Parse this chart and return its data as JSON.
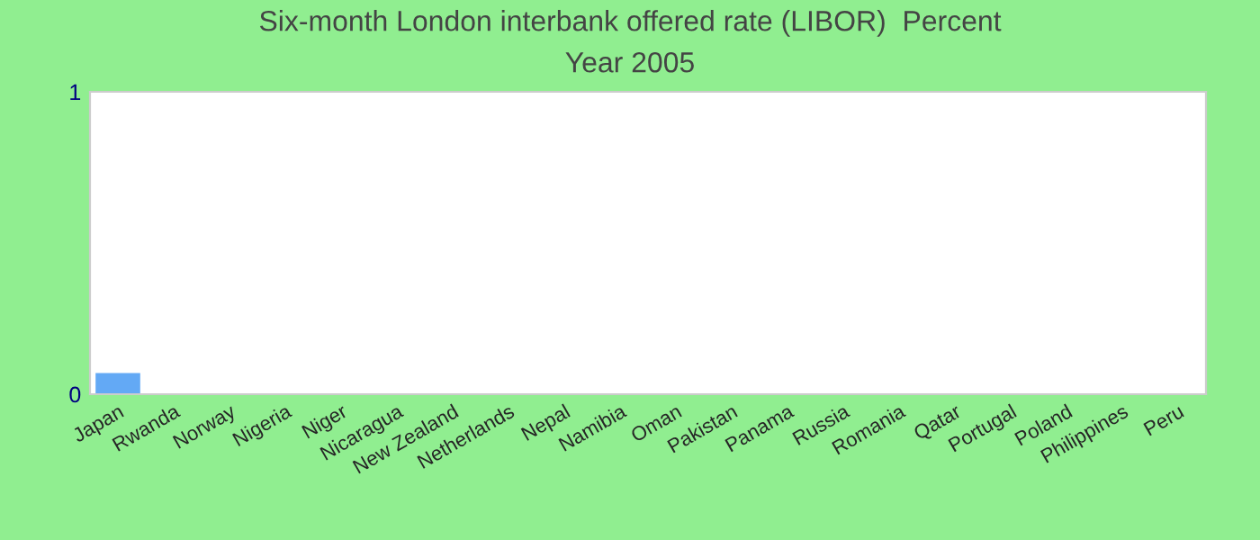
{
  "chart_data": {
    "type": "bar",
    "title": "Six-month London interbank offered rate (LIBOR)  Percent",
    "subtitle": "Year 2005",
    "categories": [
      "Japan",
      "Rwanda",
      "Norway",
      "Nigeria",
      "Niger",
      "Nicaragua",
      "New Zealand",
      "Netherlands",
      "Nepal",
      "Namibia",
      "Oman",
      "Pakistan",
      "Panama",
      "Russia",
      "Romania",
      "Qatar",
      "Portugal",
      "Poland",
      "Philippines",
      "Peru"
    ],
    "values": [
      0.07,
      0,
      0,
      0,
      0,
      0,
      0,
      0,
      0,
      0,
      0,
      0,
      0,
      0,
      0,
      0,
      0,
      0,
      0,
      0
    ],
    "color": "#63a9f5",
    "ylim": [
      0,
      1
    ],
    "yticks": [
      0,
      1
    ],
    "grid": false,
    "legend": false
  }
}
